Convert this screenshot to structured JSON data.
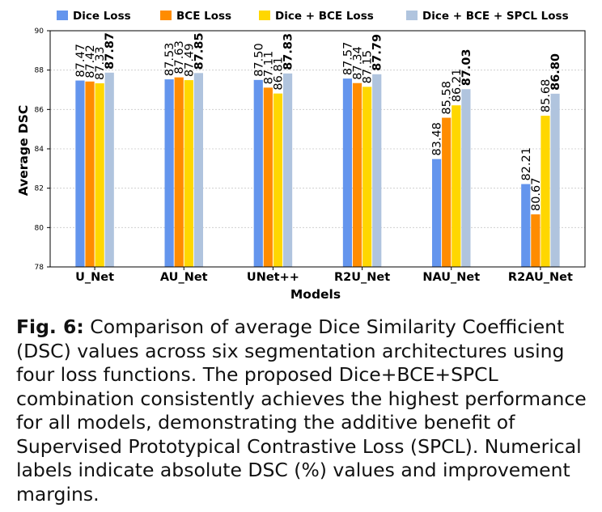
{
  "chart_data": {
    "type": "bar",
    "xlabel": "Models",
    "ylabel": "Average DSC",
    "ylim": [
      78,
      90
    ],
    "yticks": [
      "78",
      "80",
      "82",
      "84",
      "86",
      "88",
      "90"
    ],
    "grid": true,
    "legend_position": "top",
    "categories": [
      "U_Net",
      "AU_Net",
      "UNet++",
      "R2U_Net",
      "NAU_Net",
      "R2AU_Net"
    ],
    "series": [
      {
        "name": "Dice Loss",
        "color": "#6495ED",
        "bold": false,
        "values": [
          87.47,
          87.53,
          87.5,
          87.57,
          83.48,
          82.21
        ],
        "labels": [
          "87.47",
          "87.53",
          "87.50",
          "87.57",
          "83.48",
          "82.21"
        ]
      },
      {
        "name": "BCE Loss",
        "color": "#FF8C00",
        "bold": false,
        "values": [
          87.42,
          87.63,
          87.11,
          87.34,
          85.58,
          80.67
        ],
        "labels": [
          "87.42",
          "87.63",
          "87.11",
          "87.34",
          "85.58",
          "80.67"
        ]
      },
      {
        "name": "Dice + BCE Loss",
        "color": "#FFD700",
        "bold": false,
        "values": [
          87.33,
          87.49,
          86.81,
          87.15,
          86.21,
          85.68
        ],
        "labels": [
          "87.33",
          "87.49",
          "86.81",
          "87.15",
          "86.21",
          "85.68"
        ]
      },
      {
        "name": "Dice + BCE + SPCL Loss",
        "color": "#B0C4DE",
        "bold": true,
        "values": [
          87.87,
          87.85,
          87.83,
          87.79,
          87.03,
          86.8
        ],
        "labels": [
          "87.87",
          "87.85",
          "87.83",
          "87.79",
          "87.03",
          "86.80"
        ]
      }
    ]
  },
  "caption": {
    "label": "Fig. 6:",
    "text": "Comparison of average Dice Similarity Coefficient (DSC) values across six segmentation architectures using four loss functions. The proposed Dice+BCE+SPCL combination consistently achieves the highest performance for all models, demonstrating the additive benefit of Supervised Prototypical Contrastive Loss (SPCL). Numerical labels indicate absolute DSC (%) values and improvement margins."
  }
}
